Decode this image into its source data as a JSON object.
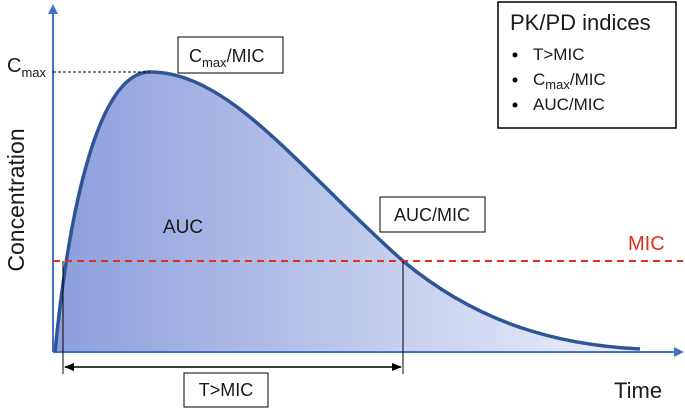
{
  "axes": {
    "y_label": "Concentration",
    "x_label": "Time"
  },
  "cmax_label": {
    "base": "C",
    "sub": "max"
  },
  "cmax_box": {
    "base": "C",
    "sub": "max",
    "suffix": "/MIC"
  },
  "auc_label": "AUC",
  "auc_box": "AUC/MIC",
  "mic_label": "MIC",
  "t_mic_box": "T>MIC",
  "legend": {
    "title": "PK/PD indices",
    "items": [
      {
        "text": "T>MIC"
      },
      {
        "base": "C",
        "sub": "max",
        "suffix": "/MIC"
      },
      {
        "text": "AUC/MIC"
      }
    ]
  }
}
